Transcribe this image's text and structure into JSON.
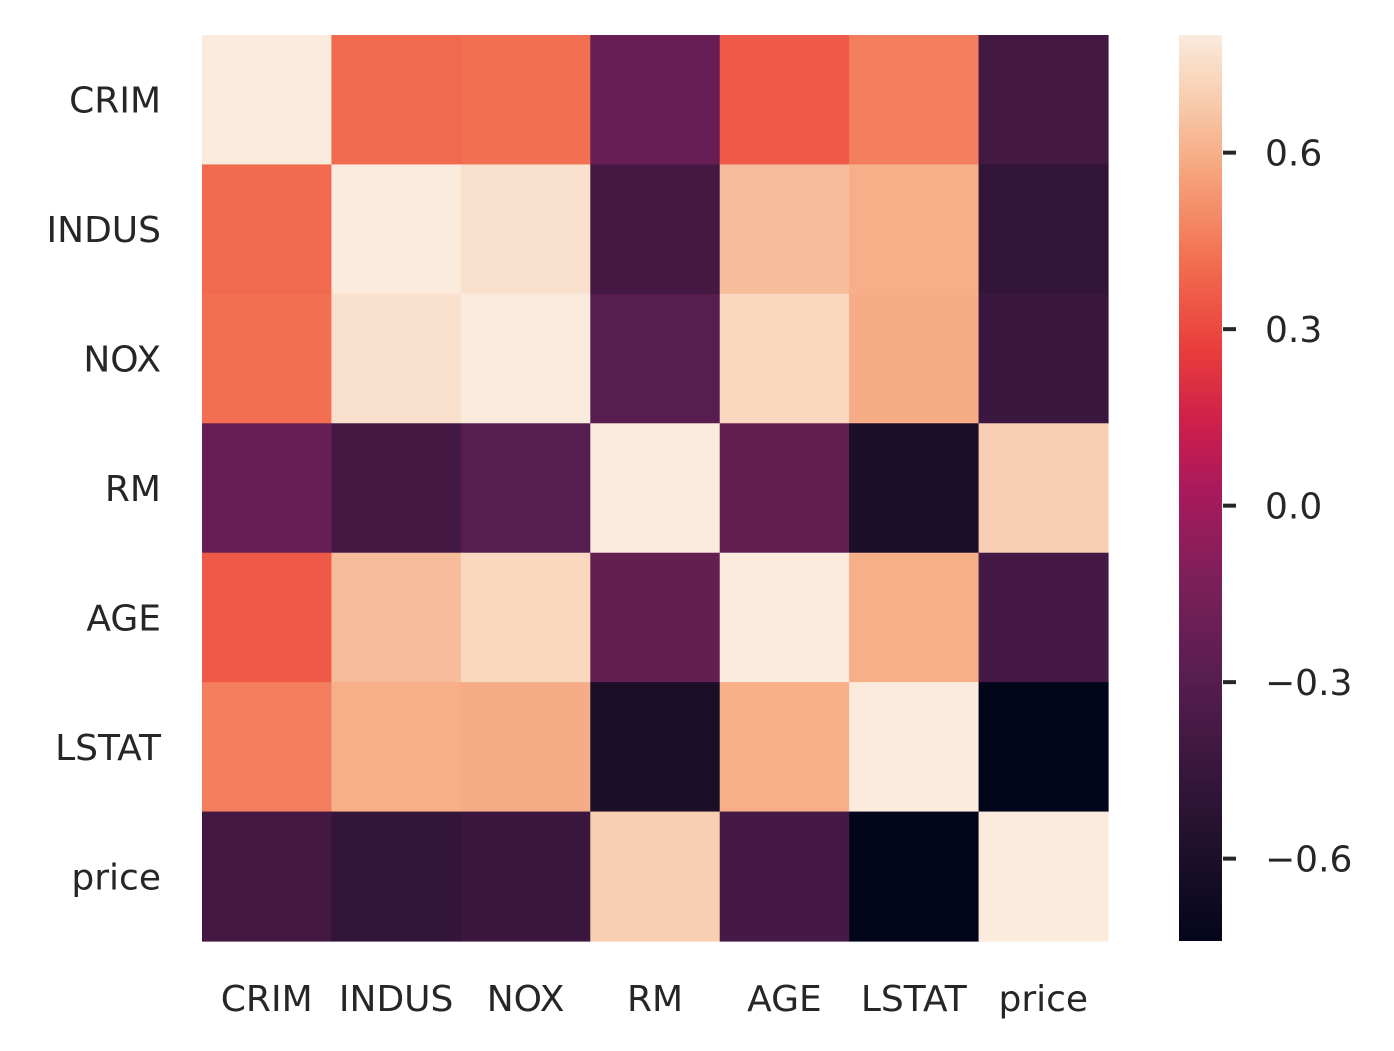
{
  "chart_data": {
    "type": "heatmap",
    "title": "",
    "xlabel": "",
    "ylabel": "",
    "labels": [
      "CRIM",
      "INDUS",
      "NOX",
      "RM",
      "AGE",
      "LSTAT",
      "price"
    ],
    "matrix": [
      [
        1.0,
        0.4,
        0.42,
        -0.22,
        0.35,
        0.46,
        -0.39
      ],
      [
        0.4,
        1.0,
        0.76,
        -0.39,
        0.64,
        0.6,
        -0.48
      ],
      [
        0.42,
        0.76,
        1.0,
        -0.3,
        0.73,
        0.59,
        -0.43
      ],
      [
        -0.22,
        -0.39,
        -0.3,
        1.0,
        -0.24,
        -0.61,
        0.7
      ],
      [
        0.35,
        0.64,
        0.73,
        -0.24,
        1.0,
        0.6,
        -0.38
      ],
      [
        0.46,
        0.6,
        0.59,
        -0.61,
        0.6,
        1.0,
        -0.74
      ],
      [
        -0.39,
        -0.48,
        -0.43,
        0.7,
        -0.38,
        -0.74,
        1.0
      ]
    ],
    "colormap": "rocket",
    "color_range": [
      -0.74,
      0.8
    ],
    "colorbar": {
      "ticks": [
        0.6,
        0.3,
        0.0,
        -0.3,
        -0.6
      ],
      "tick_labels": [
        "0.6",
        "0.3",
        "0.0",
        "−0.3",
        "−0.6"
      ]
    }
  }
}
